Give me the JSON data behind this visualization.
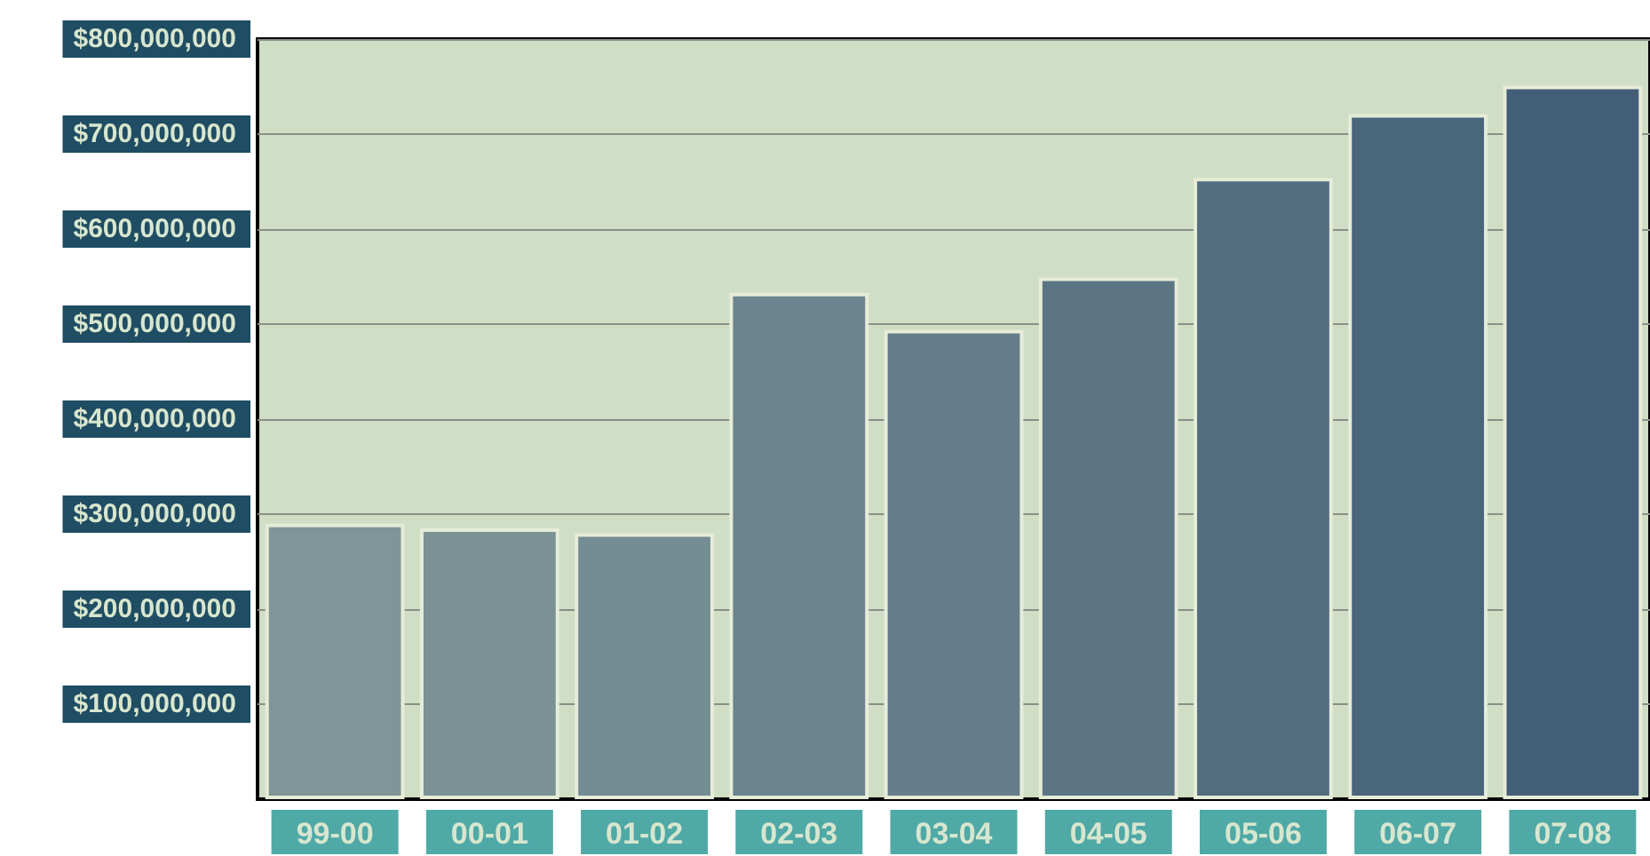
{
  "chart_data": {
    "type": "bar",
    "categories": [
      "99-00",
      "00-01",
      "01-02",
      "02-03",
      "03-04",
      "04-05",
      "05-06",
      "06-07",
      "07-08"
    ],
    "values": [
      290000000,
      285000000,
      280000000,
      533000000,
      494000000,
      549000000,
      654000000,
      721000000,
      751000000
    ],
    "colors": [
      "#809597",
      "#7a9196",
      "#748c94",
      "#6b8490",
      "#657d8a",
      "#5b7585",
      "#526c80",
      "#4a667b",
      "#435f78"
    ],
    "ylim": [
      0,
      800000000
    ],
    "yticks": [
      {
        "value": 100000000,
        "label": "$100,000,000"
      },
      {
        "value": 200000000,
        "label": "$200,000,000"
      },
      {
        "value": 300000000,
        "label": "$300,000,000"
      },
      {
        "value": 400000000,
        "label": "$400,000,000"
      },
      {
        "value": 500000000,
        "label": "$500,000,000"
      },
      {
        "value": 600000000,
        "label": "$600,000,000"
      },
      {
        "value": 700000000,
        "label": "$700,000,000"
      },
      {
        "value": 800000000,
        "label": "$800,000,000"
      }
    ],
    "grid": "y"
  }
}
